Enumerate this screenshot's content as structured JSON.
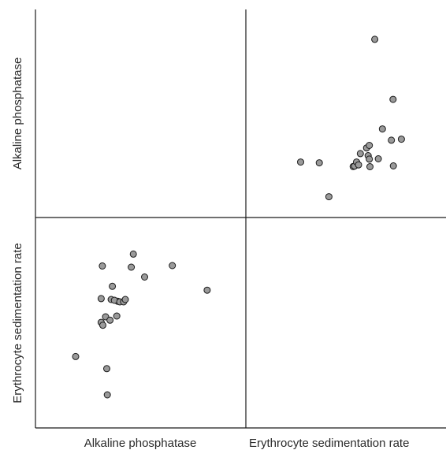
{
  "chart_data": {
    "type": "scatter",
    "matrix_variables": [
      "Alkaline phosphatase",
      "Erythrocyte sedimentation rate"
    ],
    "column_labels": [
      "Alkaline phosphatase",
      "Erythrocyte sedimentation rate"
    ],
    "row_labels": [
      "Alkaline phosphatase",
      "Erythrocyte sedimentation rate"
    ],
    "grid": false,
    "axis_ticks": false,
    "panels": [
      {
        "position": "top-right",
        "x_variable": "Erythrocyte sedimentation rate",
        "y_variable": "Alkaline phosphatase",
        "x_range": [
          0,
          1
        ],
        "y_range": [
          0,
          1
        ],
        "points": [
          [
            0.163,
            0.265
          ],
          [
            0.286,
            0.26
          ],
          [
            0.349,
            0.058
          ],
          [
            0.509,
            0.238
          ],
          [
            0.518,
            0.241
          ],
          [
            0.531,
            0.265
          ],
          [
            0.544,
            0.248
          ],
          [
            0.556,
            0.315
          ],
          [
            0.597,
            0.349
          ],
          [
            0.607,
            0.303
          ],
          [
            0.615,
            0.282
          ],
          [
            0.615,
            0.364
          ],
          [
            0.619,
            0.237
          ],
          [
            0.651,
            0.996
          ],
          [
            0.674,
            0.284
          ],
          [
            0.701,
            0.462
          ],
          [
            0.76,
            0.395
          ],
          [
            0.773,
            0.242
          ],
          [
            0.771,
            0.638
          ],
          [
            0.826,
            0.401
          ]
        ]
      },
      {
        "position": "bottom-left",
        "x_variable": "Alkaline phosphatase",
        "y_variable": "Erythrocyte sedimentation rate",
        "x_range": [
          0,
          1
        ],
        "y_range": [
          0,
          1
        ],
        "points": [
          [
            0.268,
            0.756
          ],
          [
            0.45,
            0.815
          ],
          [
            0.438,
            0.75
          ],
          [
            0.516,
            0.701
          ],
          [
            0.679,
            0.758
          ],
          [
            0.884,
            0.636
          ],
          [
            0.359,
            0.581
          ],
          [
            0.261,
            0.594
          ],
          [
            0.32,
            0.59
          ],
          [
            0.339,
            0.586
          ],
          [
            0.371,
            0.578
          ],
          [
            0.393,
            0.578
          ],
          [
            0.403,
            0.59
          ],
          [
            0.327,
            0.655
          ],
          [
            0.353,
            0.508
          ],
          [
            0.287,
            0.504
          ],
          [
            0.313,
            0.487
          ],
          [
            0.261,
            0.476
          ],
          [
            0.271,
            0.462
          ],
          [
            0.111,
            0.307
          ],
          [
            0.294,
            0.247
          ],
          [
            0.297,
            0.117
          ]
        ]
      }
    ]
  }
}
